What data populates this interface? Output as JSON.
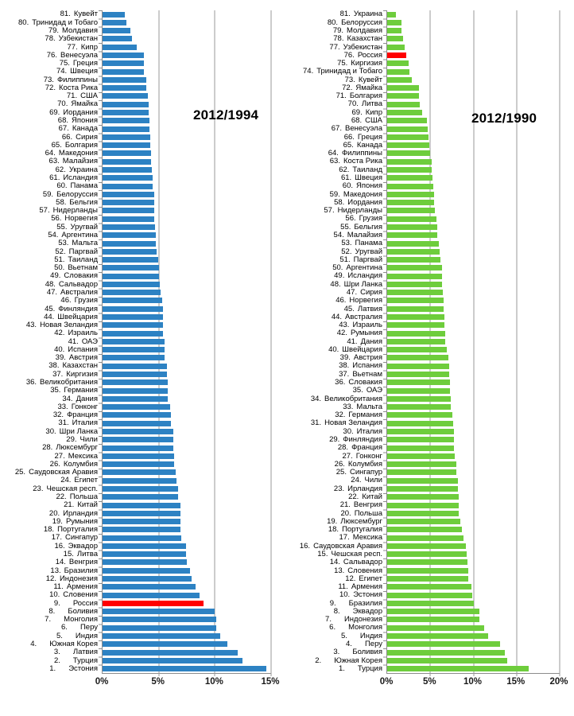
{
  "page": {
    "background": "#ffffff"
  },
  "chart_data": [
    {
      "type": "bar",
      "orientation": "horizontal",
      "title": "2012/1994",
      "unit": "%",
      "xlim": [
        0,
        15
      ],
      "x_ticks": [
        {
          "label": "0%",
          "value": 0
        },
        {
          "label": "5%",
          "value": 5
        },
        {
          "label": "10%",
          "value": 10
        },
        {
          "label": "15%",
          "value": 15
        }
      ],
      "grid": true,
      "legend": "none",
      "bar_color": "#2D82C3",
      "highlight_color": "#FF0000",
      "highlight_country": "Россия",
      "bars": [
        {
          "rank": 81,
          "name": "Кувейт",
          "value": 2.0
        },
        {
          "rank": 80,
          "name": "Тринидад и Тобаго",
          "value": 2.1
        },
        {
          "rank": 79,
          "name": "Молдавия",
          "value": 2.5
        },
        {
          "rank": 78,
          "name": "Узбекистан",
          "value": 2.65
        },
        {
          "rank": 77,
          "name": "Кипр",
          "value": 3.05
        },
        {
          "rank": 76,
          "name": "Венесуэла",
          "value": 3.7
        },
        {
          "rank": 75,
          "name": "Греция",
          "value": 3.7
        },
        {
          "rank": 74,
          "name": "Швеция",
          "value": 3.7
        },
        {
          "rank": 73,
          "name": "Филиппины",
          "value": 3.9
        },
        {
          "rank": 72,
          "name": "Коста Рика",
          "value": 3.9
        },
        {
          "rank": 71,
          "name": "США",
          "value": 4.0
        },
        {
          "rank": 70,
          "name": "Ямайка",
          "value": 4.1
        },
        {
          "rank": 69,
          "name": "Иордания",
          "value": 4.1
        },
        {
          "rank": 68,
          "name": "Япония",
          "value": 4.15
        },
        {
          "rank": 67,
          "name": "Канада",
          "value": 4.15
        },
        {
          "rank": 66,
          "name": "Сирия",
          "value": 4.25
        },
        {
          "rank": 65,
          "name": "Болгария",
          "value": 4.25
        },
        {
          "rank": 64,
          "name": "Македония",
          "value": 4.3
        },
        {
          "rank": 63,
          "name": "Малайзия",
          "value": 4.3
        },
        {
          "rank": 62,
          "name": "Украина",
          "value": 4.4
        },
        {
          "rank": 61,
          "name": "Исландия",
          "value": 4.45
        },
        {
          "rank": 60,
          "name": "Панама",
          "value": 4.45
        },
        {
          "rank": 59,
          "name": "Белоруссия",
          "value": 4.6
        },
        {
          "rank": 58,
          "name": "Бельгия",
          "value": 4.6
        },
        {
          "rank": 57,
          "name": "Нидерланды",
          "value": 4.6
        },
        {
          "rank": 56,
          "name": "Норвегия",
          "value": 4.6
        },
        {
          "rank": 55,
          "name": "Уругвай",
          "value": 4.7
        },
        {
          "rank": 54,
          "name": "Аргентина",
          "value": 4.75
        },
        {
          "rank": 53,
          "name": "Мальта",
          "value": 4.75
        },
        {
          "rank": 52,
          "name": "Паргвай",
          "value": 4.8
        },
        {
          "rank": 51,
          "name": "Таиланд",
          "value": 4.95
        },
        {
          "rank": 50,
          "name": "Вьетнам",
          "value": 5.05
        },
        {
          "rank": 49,
          "name": "Словакия",
          "value": 5.05
        },
        {
          "rank": 48,
          "name": "Сальвадор",
          "value": 5.1
        },
        {
          "rank": 47,
          "name": "Австралия",
          "value": 5.2
        },
        {
          "rank": 46,
          "name": "Грузия",
          "value": 5.3
        },
        {
          "rank": 45,
          "name": "Финляндия",
          "value": 5.35
        },
        {
          "rank": 44,
          "name": "Швейцария",
          "value": 5.35
        },
        {
          "rank": 43,
          "name": "Новая Зеландия",
          "value": 5.35
        },
        {
          "rank": 42,
          "name": "Израиль",
          "value": 5.35
        },
        {
          "rank": 41,
          "name": "ОАЭ",
          "value": 5.5
        },
        {
          "rank": 40,
          "name": "Испания",
          "value": 5.5
        },
        {
          "rank": 39,
          "name": "Австрия",
          "value": 5.55
        },
        {
          "rank": 38,
          "name": "Казахстан",
          "value": 5.7
        },
        {
          "rank": 37,
          "name": "Киргизия",
          "value": 5.7
        },
        {
          "rank": 36,
          "name": "Великобритания",
          "value": 5.8
        },
        {
          "rank": 35,
          "name": "Германия",
          "value": 5.8
        },
        {
          "rank": 34,
          "name": "Дания",
          "value": 5.8
        },
        {
          "rank": 33,
          "name": "Гонконг",
          "value": 6.0
        },
        {
          "rank": 32,
          "name": "Франция",
          "value": 6.1
        },
        {
          "rank": 31,
          "name": "Италия",
          "value": 6.1
        },
        {
          "rank": 30,
          "name": "Шри Ланка",
          "value": 6.3
        },
        {
          "rank": 29,
          "name": "Чили",
          "value": 6.3
        },
        {
          "rank": 28,
          "name": "Люксембург",
          "value": 6.3
        },
        {
          "rank": 27,
          "name": "Мексика",
          "value": 6.35
        },
        {
          "rank": 26,
          "name": "Колумбия",
          "value": 6.35
        },
        {
          "rank": 25,
          "name": "Саудовская Аравия",
          "value": 6.5
        },
        {
          "rank": 24,
          "name": "Египет",
          "value": 6.6
        },
        {
          "rank": 23,
          "name": "Чешская респ.",
          "value": 6.75
        },
        {
          "rank": 22,
          "name": "Польша",
          "value": 6.75
        },
        {
          "rank": 21,
          "name": "Китай",
          "value": 6.9
        },
        {
          "rank": 20,
          "name": "Ирландия",
          "value": 6.95
        },
        {
          "rank": 19,
          "name": "Румыния",
          "value": 6.95
        },
        {
          "rank": 18,
          "name": "Португалия",
          "value": 6.95
        },
        {
          "rank": 17,
          "name": "Сингапур",
          "value": 7.0
        },
        {
          "rank": 16,
          "name": "Эквадор",
          "value": 7.45
        },
        {
          "rank": 15,
          "name": "Литва",
          "value": 7.45
        },
        {
          "rank": 14,
          "name": "Венгрия",
          "value": 7.5
        },
        {
          "rank": 13,
          "name": "Бразилия",
          "value": 7.8
        },
        {
          "rank": 12,
          "name": "Индонезия",
          "value": 7.9
        },
        {
          "rank": 11,
          "name": "Армения",
          "value": 8.25
        },
        {
          "rank": 10,
          "name": "Словения",
          "value": 8.6
        },
        {
          "rank": 9,
          "name": "Россия",
          "value": 9.0
        },
        {
          "rank": 8,
          "name": "Боливия",
          "value": 10.0
        },
        {
          "rank": 7,
          "name": "Монголия",
          "value": 10.1
        },
        {
          "rank": 6,
          "name": "Перу",
          "value": 10.1
        },
        {
          "rank": 5,
          "name": "Индия",
          "value": 10.45
        },
        {
          "rank": 4,
          "name": "Южная Корея",
          "value": 11.1
        },
        {
          "rank": 3,
          "name": "Латвия",
          "value": 12.0
        },
        {
          "rank": 2,
          "name": "Турция",
          "value": 12.45
        },
        {
          "rank": 1,
          "name": "Эстония",
          "value": 14.6
        }
      ]
    },
    {
      "type": "bar",
      "orientation": "horizontal",
      "title": "2012/1990",
      "unit": "%",
      "xlim": [
        0,
        20
      ],
      "x_ticks": [
        {
          "label": "0%",
          "value": 0
        },
        {
          "label": "5%",
          "value": 5
        },
        {
          "label": "10%",
          "value": 10
        },
        {
          "label": "15%",
          "value": 15
        },
        {
          "label": "20%",
          "value": 20
        }
      ],
      "grid": true,
      "legend": "none",
      "bar_color": "#6ECD3C",
      "highlight_color": "#FF0000",
      "highlight_country": "Россия",
      "bars": [
        {
          "rank": 81,
          "name": "Украина",
          "value": 1.05
        },
        {
          "rank": 80,
          "name": "Белоруссия",
          "value": 1.7
        },
        {
          "rank": 79,
          "name": "Молдавия",
          "value": 1.7
        },
        {
          "rank": 78,
          "name": "Казахстан",
          "value": 1.8
        },
        {
          "rank": 77,
          "name": "Узбекистан",
          "value": 2.0
        },
        {
          "rank": 76,
          "name": "Россия",
          "value": 2.2
        },
        {
          "rank": 75,
          "name": "Киргизия",
          "value": 2.45
        },
        {
          "rank": 74,
          "name": "Тринидад и Тобаго",
          "value": 2.6
        },
        {
          "rank": 73,
          "name": "Кувейт",
          "value": 2.85
        },
        {
          "rank": 72,
          "name": "Ямайка",
          "value": 3.65
        },
        {
          "rank": 71,
          "name": "Болгария",
          "value": 3.7
        },
        {
          "rank": 70,
          "name": "Литва",
          "value": 3.8
        },
        {
          "rank": 69,
          "name": "Кипр",
          "value": 4.05
        },
        {
          "rank": 68,
          "name": "США",
          "value": 4.65
        },
        {
          "rank": 67,
          "name": "Венесуэла",
          "value": 4.7
        },
        {
          "rank": 66,
          "name": "Греция",
          "value": 4.75
        },
        {
          "rank": 65,
          "name": "Канада",
          "value": 4.9
        },
        {
          "rank": 64,
          "name": "Филиппины",
          "value": 5.0
        },
        {
          "rank": 63,
          "name": "Коста Рика",
          "value": 5.15
        },
        {
          "rank": 62,
          "name": "Таиланд",
          "value": 5.2
        },
        {
          "rank": 61,
          "name": "Швеция",
          "value": 5.25
        },
        {
          "rank": 60,
          "name": "Япония",
          "value": 5.3
        },
        {
          "rank": 59,
          "name": "Македония",
          "value": 5.4
        },
        {
          "rank": 58,
          "name": "Иордания",
          "value": 5.45
        },
        {
          "rank": 57,
          "name": "Нидерланды",
          "value": 5.55
        },
        {
          "rank": 56,
          "name": "Грузия",
          "value": 5.7
        },
        {
          "rank": 55,
          "name": "Бельгия",
          "value": 5.8
        },
        {
          "rank": 54,
          "name": "Малайзия",
          "value": 5.85
        },
        {
          "rank": 53,
          "name": "Панама",
          "value": 5.95
        },
        {
          "rank": 52,
          "name": "Уругвай",
          "value": 6.1
        },
        {
          "rank": 51,
          "name": "Паргвай",
          "value": 6.2
        },
        {
          "rank": 50,
          "name": "Аргентина",
          "value": 6.35
        },
        {
          "rank": 49,
          "name": "Исландия",
          "value": 6.35
        },
        {
          "rank": 48,
          "name": "Шри Ланка",
          "value": 6.35
        },
        {
          "rank": 47,
          "name": "Сирия",
          "value": 6.45
        },
        {
          "rank": 46,
          "name": "Норвегия",
          "value": 6.5
        },
        {
          "rank": 45,
          "name": "Латвия",
          "value": 6.55
        },
        {
          "rank": 44,
          "name": "Австралия",
          "value": 6.65
        },
        {
          "rank": 43,
          "name": "Израиль",
          "value": 6.65
        },
        {
          "rank": 42,
          "name": "Румыния",
          "value": 6.75
        },
        {
          "rank": 41,
          "name": "Дания",
          "value": 6.75
        },
        {
          "rank": 40,
          "name": "Швейцария",
          "value": 6.95
        },
        {
          "rank": 39,
          "name": "Австрия",
          "value": 7.1
        },
        {
          "rank": 38,
          "name": "Испания",
          "value": 7.2
        },
        {
          "rank": 37,
          "name": "Вьетнам",
          "value": 7.2
        },
        {
          "rank": 36,
          "name": "Словакия",
          "value": 7.25
        },
        {
          "rank": 35,
          "name": "ОАЭ",
          "value": 7.3
        },
        {
          "rank": 34,
          "name": "Великобритания",
          "value": 7.4
        },
        {
          "rank": 33,
          "name": "Мальта",
          "value": 7.4
        },
        {
          "rank": 32,
          "name": "Германия",
          "value": 7.55
        },
        {
          "rank": 31,
          "name": "Новая Зеландия",
          "value": 7.65
        },
        {
          "rank": 30,
          "name": "Италия",
          "value": 7.7
        },
        {
          "rank": 29,
          "name": "Финляндия",
          "value": 7.7
        },
        {
          "rank": 28,
          "name": "Франция",
          "value": 7.7
        },
        {
          "rank": 27,
          "name": "Гонконг",
          "value": 7.85
        },
        {
          "rank": 26,
          "name": "Колумбия",
          "value": 8.0
        },
        {
          "rank": 25,
          "name": "Сингапур",
          "value": 8.0
        },
        {
          "rank": 24,
          "name": "Чили",
          "value": 8.2
        },
        {
          "rank": 23,
          "name": "Ирландия",
          "value": 8.2
        },
        {
          "rank": 22,
          "name": "Китай",
          "value": 8.25
        },
        {
          "rank": 21,
          "name": "Венгрия",
          "value": 8.3
        },
        {
          "rank": 20,
          "name": "Польша",
          "value": 8.3
        },
        {
          "rank": 19,
          "name": "Люксембург",
          "value": 8.45
        },
        {
          "rank": 18,
          "name": "Португалия",
          "value": 8.65
        },
        {
          "rank": 17,
          "name": "Мексика",
          "value": 8.85
        },
        {
          "rank": 16,
          "name": "Саудовская Аравия",
          "value": 9.1
        },
        {
          "rank": 15,
          "name": "Чешская респ.",
          "value": 9.25
        },
        {
          "rank": 14,
          "name": "Сальвадор",
          "value": 9.35
        },
        {
          "rank": 13,
          "name": "Словения",
          "value": 9.4
        },
        {
          "rank": 12,
          "name": "Египет",
          "value": 9.4
        },
        {
          "rank": 11,
          "name": "Армения",
          "value": 9.8
        },
        {
          "rank": 10,
          "name": "Эстония",
          "value": 9.85
        },
        {
          "rank": 9,
          "name": "Бразилия",
          "value": 10.0
        },
        {
          "rank": 8,
          "name": "Эквадор",
          "value": 10.65
        },
        {
          "rank": 7,
          "name": "Индонезия",
          "value": 10.7
        },
        {
          "rank": 6,
          "name": "Монголия",
          "value": 11.2
        },
        {
          "rank": 5,
          "name": "Индия",
          "value": 11.7
        },
        {
          "rank": 4,
          "name": "Перу",
          "value": 13.1
        },
        {
          "rank": 3,
          "name": "Боливия",
          "value": 13.6
        },
        {
          "rank": 2,
          "name": "Южная Корея",
          "value": 13.9
        },
        {
          "rank": 1,
          "name": "Турция",
          "value": 16.4
        }
      ]
    }
  ]
}
